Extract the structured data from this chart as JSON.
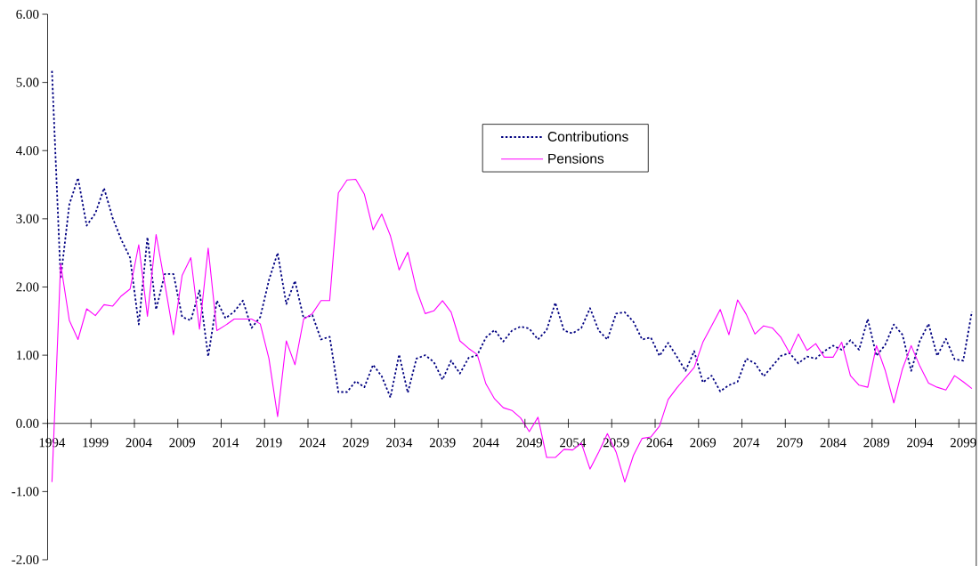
{
  "chart_data": {
    "type": "line",
    "categories": [
      "1994",
      null,
      null,
      null,
      null,
      "1999",
      null,
      null,
      null,
      null,
      "2004",
      null,
      null,
      null,
      null,
      "2009",
      null,
      null,
      null,
      null,
      "2014",
      null,
      null,
      null,
      null,
      "2019",
      null,
      null,
      null,
      null,
      "2024",
      null,
      null,
      null,
      null,
      "2029",
      null,
      null,
      null,
      null,
      "2034",
      null,
      null,
      null,
      null,
      "2039",
      null,
      null,
      null,
      null,
      "2044",
      null,
      null,
      null,
      null,
      "2049",
      null,
      null,
      null,
      null,
      "2054",
      null,
      null,
      null,
      null,
      "2059",
      null,
      null,
      null,
      null,
      "2064",
      null,
      null,
      null,
      null,
      "2069",
      null,
      null,
      null,
      null,
      "2074",
      null,
      null,
      null,
      null,
      "2079",
      null,
      null,
      null,
      null,
      "2084",
      null,
      null,
      null,
      null,
      "2089",
      null,
      null,
      null,
      null,
      "2094",
      null,
      null,
      null,
      null,
      "2099",
      null
    ],
    "series": [
      {
        "name": "Contributions",
        "color": "#000080",
        "line_style": "dotted",
        "values": [
          5.17,
          2.12,
          3.21,
          3.6,
          2.9,
          3.08,
          3.45,
          3.01,
          2.69,
          2.43,
          1.45,
          2.73,
          1.67,
          2.19,
          2.19,
          1.56,
          1.51,
          1.95,
          0.98,
          1.8,
          1.54,
          1.64,
          1.8,
          1.4,
          1.56,
          2.1,
          2.5,
          1.75,
          2.09,
          1.54,
          1.59,
          1.23,
          1.27,
          0.46,
          0.46,
          0.62,
          0.53,
          0.86,
          0.69,
          0.38,
          1.01,
          0.45,
          0.95,
          1.0,
          0.9,
          0.64,
          0.92,
          0.73,
          0.96,
          1.0,
          1.26,
          1.37,
          1.2,
          1.36,
          1.42,
          1.39,
          1.23,
          1.37,
          1.77,
          1.36,
          1.32,
          1.4,
          1.69,
          1.36,
          1.23,
          1.61,
          1.63,
          1.49,
          1.23,
          1.26,
          0.99,
          1.18,
          0.98,
          0.77,
          1.06,
          0.6,
          0.7,
          0.47,
          0.56,
          0.61,
          0.95,
          0.88,
          0.69,
          0.84,
          0.99,
          1.03,
          0.88,
          0.98,
          0.95,
          1.06,
          1.14,
          1.08,
          1.22,
          1.08,
          1.53,
          0.99,
          1.15,
          1.45,
          1.3,
          0.77,
          1.21,
          1.46,
          0.99,
          1.24,
          0.94,
          0.92,
          1.64
        ]
      },
      {
        "name": "Pensions",
        "color": "#ff00ff",
        "line_style": "solid",
        "values": [
          -0.86,
          2.34,
          1.51,
          1.23,
          1.68,
          1.58,
          1.74,
          1.72,
          1.87,
          1.97,
          2.62,
          1.57,
          2.77,
          2.05,
          1.3,
          2.17,
          2.43,
          1.38,
          2.57,
          1.36,
          1.44,
          1.53,
          1.53,
          1.53,
          1.46,
          0.95,
          0.1,
          1.21,
          0.86,
          1.53,
          1.61,
          1.8,
          1.8,
          3.38,
          3.57,
          3.58,
          3.36,
          2.84,
          3.07,
          2.75,
          2.25,
          2.51,
          1.96,
          1.61,
          1.65,
          1.8,
          1.63,
          1.21,
          1.1,
          1.01,
          0.58,
          0.36,
          0.23,
          0.19,
          0.08,
          -0.12,
          0.09,
          -0.5,
          -0.5,
          -0.38,
          -0.39,
          -0.29,
          -0.67,
          -0.42,
          -0.15,
          -0.42,
          -0.86,
          -0.47,
          -0.22,
          -0.2,
          -0.04,
          0.35,
          0.52,
          0.67,
          0.82,
          1.19,
          1.43,
          1.67,
          1.3,
          1.81,
          1.6,
          1.31,
          1.43,
          1.4,
          1.26,
          1.03,
          1.31,
          1.07,
          1.17,
          0.97,
          0.97,
          1.19,
          0.7,
          0.56,
          0.53,
          1.14,
          0.78,
          0.3,
          0.8,
          1.14,
          0.84,
          0.59,
          0.53,
          0.49,
          0.7,
          0.61,
          0.51
        ]
      }
    ],
    "ylim": [
      -2,
      6
    ],
    "yticks": [
      {
        "value": -2,
        "label": "-2.00"
      },
      {
        "value": -1,
        "label": "-1.00"
      },
      {
        "value": 0,
        "label": "0.00"
      },
      {
        "value": 1,
        "label": "1.00"
      },
      {
        "value": 2,
        "label": "2.00"
      },
      {
        "value": 3,
        "label": "3.00"
      },
      {
        "value": 4,
        "label": "4.00"
      },
      {
        "value": 5,
        "label": "5.00"
      },
      {
        "value": 6,
        "label": "6.00"
      }
    ],
    "legend": "top"
  }
}
